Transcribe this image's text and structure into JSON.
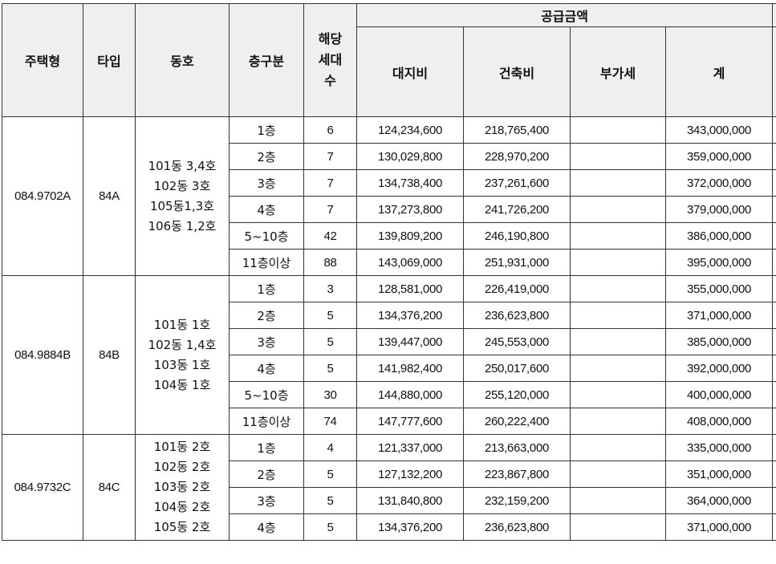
{
  "headers": {
    "housing_type": "주택형",
    "type": "타입",
    "dong_ho": "동호",
    "floor_group": "층구분",
    "units_line1": "해당",
    "units_line2": "세대",
    "units_line3": "수",
    "supply_price": "공급금액",
    "land": "대지비",
    "building": "건축비",
    "vat": "부가세",
    "total": "계"
  },
  "groups": [
    {
      "housing_type": "084.9702A",
      "type": "84A",
      "dong_ho": "101동 3,4호\n102동 3호\n105동1,3호\n106동 1,2호",
      "rows": [
        {
          "floor": "1층",
          "units": "6",
          "land": "124,234,600",
          "building": "218,765,400",
          "vat": "",
          "total": "343,000,000"
        },
        {
          "floor": "2층",
          "units": "7",
          "land": "130,029,800",
          "building": "228,970,200",
          "vat": "",
          "total": "359,000,000"
        },
        {
          "floor": "3층",
          "units": "7",
          "land": "134,738,400",
          "building": "237,261,600",
          "vat": "",
          "total": "372,000,000"
        },
        {
          "floor": "4층",
          "units": "7",
          "land": "137,273,800",
          "building": "241,726,200",
          "vat": "",
          "total": "379,000,000"
        },
        {
          "floor": "5~10층",
          "units": "42",
          "land": "139,809,200",
          "building": "246,190,800",
          "vat": "",
          "total": "386,000,000"
        },
        {
          "floor": "11층이상",
          "units": "88",
          "land": "143,069,000",
          "building": "251,931,000",
          "vat": "",
          "total": "395,000,000"
        }
      ]
    },
    {
      "housing_type": "084.9884B",
      "type": "84B",
      "dong_ho": "101동 1호\n102동 1,4호\n103동 1호\n104동 1호",
      "rows": [
        {
          "floor": "1층",
          "units": "3",
          "land": "128,581,000",
          "building": "226,419,000",
          "vat": "",
          "total": "355,000,000"
        },
        {
          "floor": "2층",
          "units": "5",
          "land": "134,376,200",
          "building": "236,623,800",
          "vat": "",
          "total": "371,000,000"
        },
        {
          "floor": "3층",
          "units": "5",
          "land": "139,447,000",
          "building": "245,553,000",
          "vat": "",
          "total": "385,000,000"
        },
        {
          "floor": "4층",
          "units": "5",
          "land": "141,982,400",
          "building": "250,017,600",
          "vat": "",
          "total": "392,000,000"
        },
        {
          "floor": "5~10층",
          "units": "30",
          "land": "144,880,000",
          "building": "255,120,000",
          "vat": "",
          "total": "400,000,000"
        },
        {
          "floor": "11층이상",
          "units": "74",
          "land": "147,777,600",
          "building": "260,222,400",
          "vat": "",
          "total": "408,000,000"
        }
      ]
    },
    {
      "housing_type": "084.9732C",
      "type": "84C",
      "dong_ho": "101동 2호\n102동 2호\n103동 2호\n104동 2호\n105동 2호",
      "rows": [
        {
          "floor": "1층",
          "units": "4",
          "land": "121,337,000",
          "building": "213,663,000",
          "vat": "",
          "total": "335,000,000"
        },
        {
          "floor": "2층",
          "units": "5",
          "land": "127,132,200",
          "building": "223,867,800",
          "vat": "",
          "total": "351,000,000"
        },
        {
          "floor": "3층",
          "units": "5",
          "land": "131,840,800",
          "building": "232,159,200",
          "vat": "",
          "total": "364,000,000"
        },
        {
          "floor": "4층",
          "units": "5",
          "land": "134,376,200",
          "building": "236,623,800",
          "vat": "",
          "total": "371,000,000"
        }
      ]
    }
  ]
}
